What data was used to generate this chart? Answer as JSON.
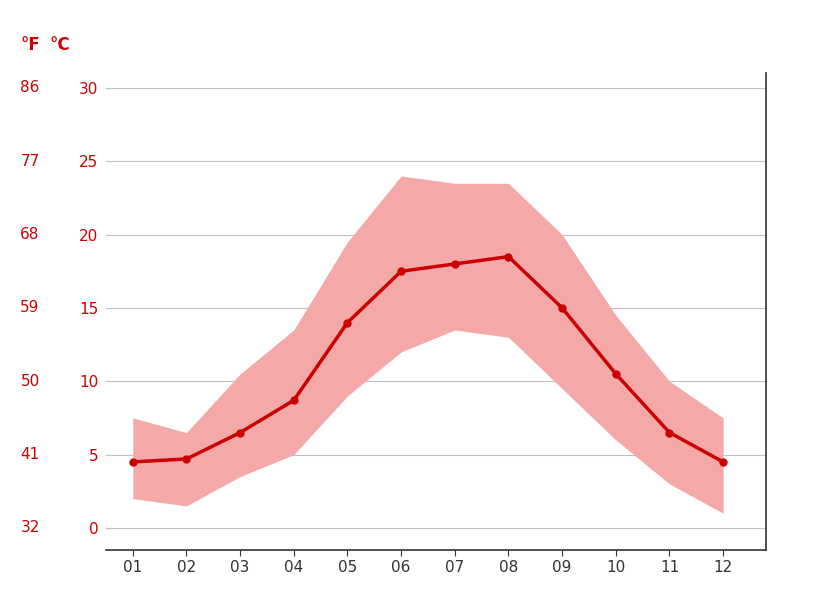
{
  "months": [
    1,
    2,
    3,
    4,
    5,
    6,
    7,
    8,
    9,
    10,
    11,
    12
  ],
  "month_labels": [
    "01",
    "02",
    "03",
    "04",
    "05",
    "06",
    "07",
    "08",
    "09",
    "10",
    "11",
    "12"
  ],
  "mean_temps_c": [
    4.5,
    4.7,
    6.5,
    8.7,
    14.0,
    17.5,
    18.0,
    18.5,
    15.0,
    10.5,
    6.5,
    4.5
  ],
  "max_temps_c": [
    7.5,
    6.5,
    10.5,
    13.5,
    19.5,
    24.0,
    23.5,
    23.5,
    20.0,
    14.5,
    10.0,
    7.5
  ],
  "min_temps_c": [
    2.0,
    1.5,
    3.5,
    5.0,
    9.0,
    12.0,
    13.5,
    13.0,
    9.5,
    6.0,
    3.0,
    1.0
  ],
  "yticks_c": [
    0,
    5,
    10,
    15,
    20,
    25,
    30
  ],
  "yticks_f": [
    32,
    41,
    50,
    59,
    68,
    77,
    86
  ],
  "line_color": "#cc0000",
  "fill_color": "#f4a9a8",
  "grid_color": "#c0c0c0",
  "label_color_red": "#cc0000",
  "label_color_dark": "#333333",
  "background_color": "#ffffff",
  "ylabel_F": "°F",
  "ylabel_C": "°C",
  "ylim": [
    -1.5,
    31
  ],
  "xlim": [
    0.5,
    12.8
  ]
}
